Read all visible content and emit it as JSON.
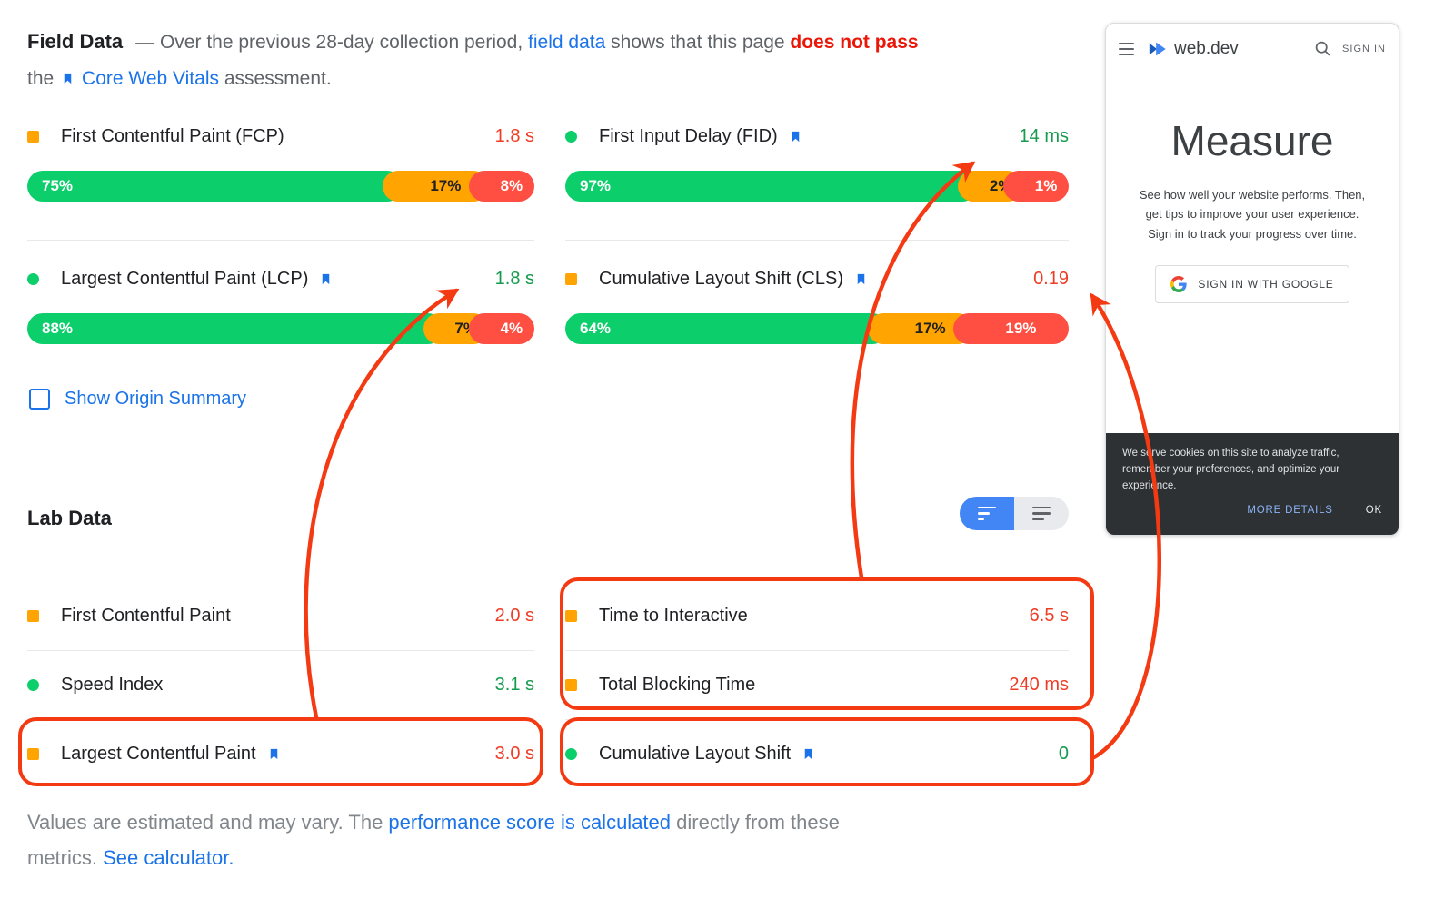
{
  "colors": {
    "bar_green": "#0cce6b",
    "bar_orange": "#ffa400",
    "bar_red": "#ff4e42",
    "value_green": "#149b4d",
    "value_red": "#ef3c25",
    "link_blue": "#1a73e8",
    "fail_red": "#ea1709",
    "annotation_red": "#f43a13",
    "toggle_blue": "#4285f4"
  },
  "field": {
    "title": "Field Data",
    "intro": {
      "t1": "— Over the previous 28-day collection period, ",
      "link_field_data": "field data",
      "t2": " shows that this page ",
      "fail": "does not pass",
      "t3": "the ",
      "link_cwv": "Core Web Vitals",
      "t4": " assessment."
    },
    "metrics": [
      {
        "name": "First Contentful Paint (FCP)",
        "icon": "square",
        "bookmark": false,
        "value": "1.8 s",
        "status": "red",
        "bar": [
          {
            "label": "75%",
            "value": 75,
            "color": "green"
          },
          {
            "label": "17%",
            "value": 17,
            "color": "orange"
          },
          {
            "label": "8%",
            "value": 8,
            "color": "red"
          }
        ]
      },
      {
        "name": "First Input Delay (FID)",
        "icon": "circle",
        "bookmark": true,
        "value": "14 ms",
        "status": "green",
        "bar": [
          {
            "label": "97%",
            "value": 97,
            "color": "green"
          },
          {
            "label": "2%",
            "value": 2,
            "color": "orange"
          },
          {
            "label": "1%",
            "value": 1,
            "color": "red"
          }
        ]
      },
      {
        "name": "Largest Contentful Paint (LCP)",
        "icon": "circle",
        "bookmark": true,
        "value": "1.8 s",
        "status": "green",
        "bar": [
          {
            "label": "88%",
            "value": 88,
            "color": "green"
          },
          {
            "label": "7%",
            "value": 7,
            "color": "orange"
          },
          {
            "label": "4%",
            "value": 4,
            "color": "red"
          }
        ]
      },
      {
        "name": "Cumulative Layout Shift (CLS)",
        "icon": "square",
        "bookmark": true,
        "value": "0.19",
        "status": "red",
        "bar": [
          {
            "label": "64%",
            "value": 64,
            "color": "green"
          },
          {
            "label": "17%",
            "value": 17,
            "color": "orange"
          },
          {
            "label": "19%",
            "value": 19,
            "color": "red"
          }
        ]
      }
    ],
    "show_origin_label": "Show Origin Summary"
  },
  "lab": {
    "title": "Lab Data",
    "left": [
      {
        "name": "First Contentful Paint",
        "icon": "square",
        "bookmark": false,
        "value": "2.0 s",
        "status": "red"
      },
      {
        "name": "Speed Index",
        "icon": "circle",
        "bookmark": false,
        "value": "3.1 s",
        "status": "green"
      },
      {
        "name": "Largest Contentful Paint",
        "icon": "square",
        "bookmark": true,
        "value": "3.0 s",
        "status": "red"
      }
    ],
    "right": [
      {
        "name": "Time to Interactive",
        "icon": "square",
        "bookmark": false,
        "value": "6.5 s",
        "status": "red"
      },
      {
        "name": "Total Blocking Time",
        "icon": "square",
        "bookmark": false,
        "value": "240 ms",
        "status": "red"
      },
      {
        "name": "Cumulative Layout Shift",
        "icon": "circle",
        "bookmark": true,
        "value": "0",
        "status": "green"
      }
    ]
  },
  "footer": {
    "t1": "Values are estimated and may vary. The ",
    "link1": "performance score is calculated",
    "t2": " directly from these",
    "t3": "metrics. ",
    "link2": "See calculator."
  },
  "phone": {
    "brand": "web.dev",
    "sign_in": "SIGN IN",
    "title": "Measure",
    "description": "See how well your website performs. Then, get tips to improve your user experience. Sign in to track your progress over time.",
    "google_button": "SIGN IN WITH GOOGLE",
    "cookie_text": "We serve cookies on this site to analyze traffic, remember your preferences, and optimize your experience.",
    "more_details": "MORE DETAILS",
    "ok": "OK"
  }
}
